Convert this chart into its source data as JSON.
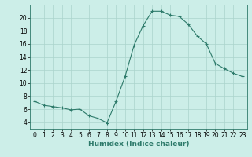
{
  "x": [
    0,
    1,
    2,
    3,
    4,
    5,
    6,
    7,
    8,
    9,
    10,
    11,
    12,
    13,
    14,
    15,
    16,
    17,
    18,
    19,
    20,
    21,
    22,
    23
  ],
  "y": [
    7.2,
    6.6,
    6.4,
    6.2,
    5.9,
    6.0,
    5.0,
    4.6,
    3.9,
    7.2,
    11.0,
    15.8,
    18.8,
    21.0,
    21.0,
    20.4,
    20.2,
    19.0,
    17.2,
    16.0,
    13.0,
    12.2,
    11.5,
    11.0
  ],
  "line_color": "#2d7a6a",
  "marker": "+",
  "marker_size": 3,
  "bg_color": "#cceee8",
  "grid_color": "#aad4cc",
  "xlabel": "Humidex (Indice chaleur)",
  "ylim": [
    3,
    22
  ],
  "xlim": [
    -0.5,
    23.5
  ],
  "yticks": [
    4,
    6,
    8,
    10,
    12,
    14,
    16,
    18,
    20
  ],
  "xticks": [
    0,
    1,
    2,
    3,
    4,
    5,
    6,
    7,
    8,
    9,
    10,
    11,
    12,
    13,
    14,
    15,
    16,
    17,
    18,
    19,
    20,
    21,
    22,
    23
  ],
  "xlabel_fontsize": 6.5,
  "tick_fontsize": 5.5,
  "linewidth": 0.8,
  "marker_edge_width": 0.8
}
